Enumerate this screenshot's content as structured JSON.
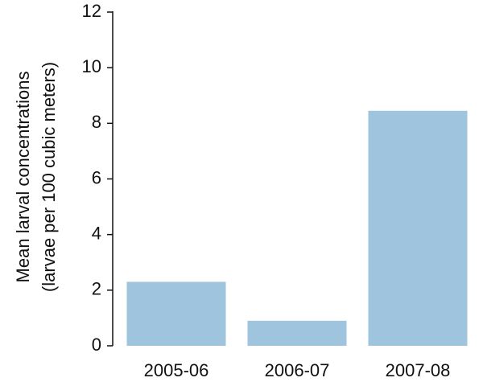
{
  "chart_data": {
    "type": "bar",
    "ylabel": [
      "Mean larval concentrations",
      "(larvae per 100 cubic meters)"
    ],
    "categories": [
      "2005-06",
      "2006-07",
      "2007-08"
    ],
    "values": [
      2.3,
      0.9,
      8.45
    ],
    "color": "#9ec4de",
    "ylim": [
      0,
      12
    ],
    "yticks": [
      0,
      2,
      4,
      6,
      8,
      10,
      12
    ],
    "grid": false
  }
}
